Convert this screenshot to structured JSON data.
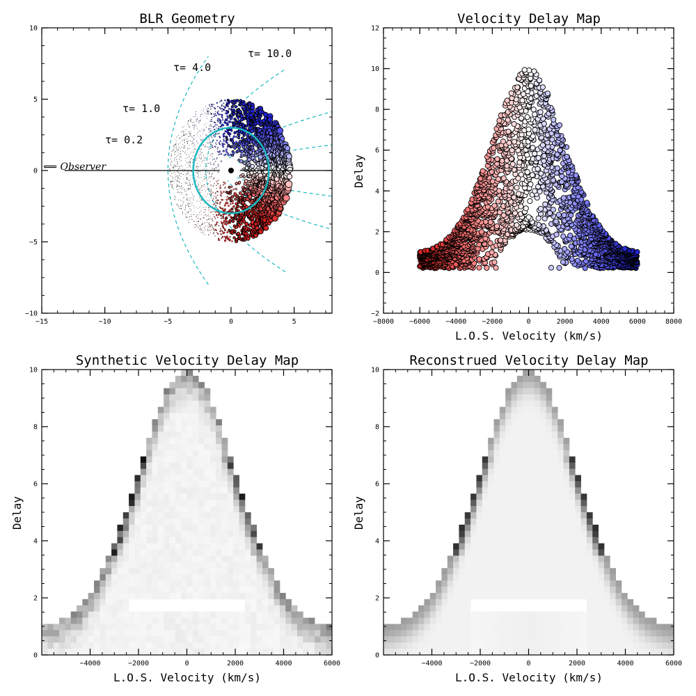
{
  "colors": {
    "blue_deep": "#2323d6",
    "blue_light": "#8a8aff",
    "red_deep": "#d62323",
    "red_light": "#ff8a8a",
    "cyan": "#1ab8c0",
    "gray_max": "#000000"
  },
  "chart_data": [
    {
      "id": "blr",
      "type": "scatter",
      "title": "BLR Geometry",
      "xlabel": "",
      "ylabel": "",
      "xlim": [
        -15,
        8
      ],
      "ylim": [
        -10,
        10
      ],
      "xticks": [
        -15,
        -10,
        -5,
        0,
        5
      ],
      "yticks": [
        -10,
        -5,
        0,
        5,
        10
      ],
      "ring_radius": 3.0,
      "inner_radius": 0.8,
      "outer_radius": 5.0,
      "observer_label": "⟸ Observer",
      "isodelay": [
        {
          "tau": 0.2,
          "label": "τ= 0.2"
        },
        {
          "tau": 1.0,
          "label": "τ= 1.0"
        },
        {
          "tau": 4.0,
          "label": "τ= 4.0"
        },
        {
          "tau": 10.0,
          "label": "τ= 10.0"
        }
      ]
    },
    {
      "id": "vdm",
      "type": "scatter",
      "title": "Velocity Delay Map",
      "xlabel": "L.O.S. Velocity (km/s)",
      "ylabel": "Delay",
      "xlim": [
        -8000,
        8000
      ],
      "ylim": [
        -2,
        12
      ],
      "xticks": [
        -8000,
        -6000,
        -4000,
        -2000,
        0,
        2000,
        4000,
        6000,
        8000
      ],
      "yticks": [
        -2,
        0,
        2,
        4,
        6,
        8,
        10,
        12
      ],
      "vmax": 6000
    },
    {
      "id": "synthetic",
      "type": "heatmap",
      "title": "Synthetic Velocity Delay Map",
      "xlabel": "L.O.S. Velocity (km/s)",
      "ylabel": "Delay",
      "xlim": [
        -6000,
        6000
      ],
      "ylim": [
        0,
        10
      ],
      "xticks": [
        -4000,
        -2000,
        0,
        2000,
        4000,
        6000
      ],
      "yticks": [
        0,
        2,
        4,
        6,
        8,
        10
      ],
      "cols": 50,
      "rows": 46
    },
    {
      "id": "reconstructed",
      "type": "heatmap",
      "title": "Reconstrued Velocity Delay Map",
      "xlabel": "L.O.S. Velocity (km/s)",
      "ylabel": "Delay",
      "xlim": [
        -6000,
        6000
      ],
      "ylim": [
        0,
        10
      ],
      "xticks": [
        -4000,
        -2000,
        0,
        2000,
        4000,
        6000
      ],
      "yticks": [
        0,
        2,
        4,
        6,
        8,
        10
      ],
      "cols": 50,
      "rows": 46
    }
  ]
}
